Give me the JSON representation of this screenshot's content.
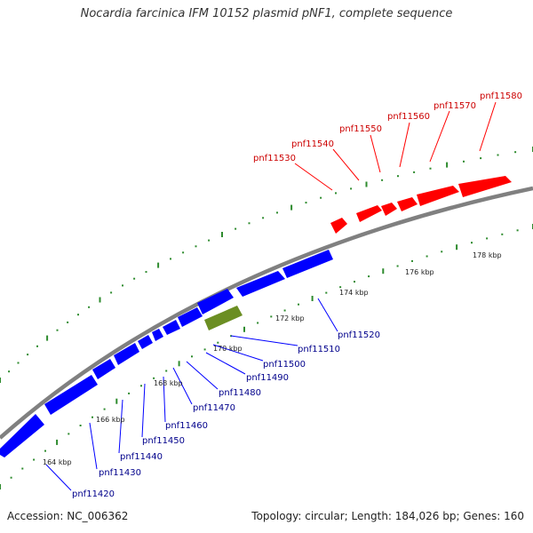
{
  "title": "Nocardia farcinica IFM 10152 plasmid pNF1, complete sequence",
  "accession": "Accession: NC_006362",
  "summary": "Topology: circular; Length: 184,026 bp; Genes: 160",
  "colors": {
    "backbone": "#808080",
    "forward_gene": "#ff0000",
    "reverse_gene": "#0000ff",
    "rna_gene": "#6b8e23",
    "tick": "#2e8b2e",
    "forward_label": "#cc0000",
    "reverse_label": "#00008b"
  },
  "scale_labels": [
    "164 kbp",
    "166 kbp",
    "168 kbp",
    "170 kbp",
    "172 kbp",
    "174 kbp",
    "176 kbp",
    "178 kbp"
  ],
  "forward_labels": [
    "pnf11530",
    "pnf11540",
    "pnf11550",
    "pnf11560",
    "pnf11570",
    "pnf11580"
  ],
  "reverse_labels": [
    "pnf11420",
    "pnf11430",
    "pnf11440",
    "pnf11450",
    "pnf11460",
    "pnf11470",
    "pnf11480",
    "pnf11490",
    "pnf11500",
    "pnf11510",
    "pnf11520"
  ]
}
